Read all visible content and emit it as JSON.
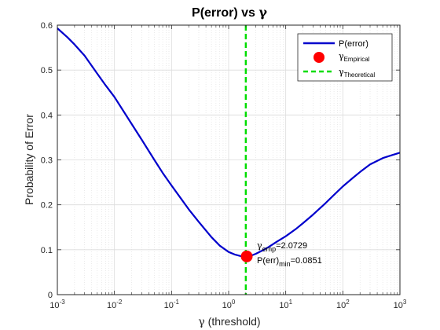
{
  "chart_data": {
    "type": "line",
    "title": "P(error) vs γ",
    "title_parts": [
      "P(error) vs ",
      "γ"
    ],
    "xlabel": "γ (threshold)",
    "xlabel_parts": [
      "γ",
      " (threshold)"
    ],
    "ylabel": "Probability of Error",
    "xscale": "log",
    "xlim": [
      0.001,
      1000
    ],
    "ylim": [
      0,
      0.6
    ],
    "grid": true,
    "minor_grid": true,
    "x_ticks": [
      {
        "base": "10",
        "exp": "-3"
      },
      {
        "base": "10",
        "exp": "-2"
      },
      {
        "base": "10",
        "exp": "-1"
      },
      {
        "base": "10",
        "exp": "0"
      },
      {
        "base": "10",
        "exp": "1"
      },
      {
        "base": "10",
        "exp": "2"
      },
      {
        "base": "10",
        "exp": "3"
      }
    ],
    "y_ticks": [
      "0",
      "0.1",
      "0.2",
      "0.3",
      "0.4",
      "0.5",
      "0.6"
    ],
    "series": [
      {
        "name": "P(error)",
        "color": "#0000cc",
        "x": [
          0.001,
          0.0015,
          0.002,
          0.003,
          0.005,
          0.007,
          0.01,
          0.015,
          0.02,
          0.03,
          0.05,
          0.07,
          0.1,
          0.15,
          0.2,
          0.3,
          0.5,
          0.7,
          1.0,
          1.3,
          1.6,
          2.0729,
          2.5,
          3,
          4,
          5,
          7,
          10,
          15,
          20,
          30,
          50,
          70,
          100,
          150,
          200,
          300,
          500,
          700,
          1000
        ],
        "y": [
          0.593,
          0.573,
          0.557,
          0.532,
          0.492,
          0.466,
          0.44,
          0.405,
          0.38,
          0.345,
          0.3,
          0.271,
          0.243,
          0.212,
          0.19,
          0.162,
          0.128,
          0.109,
          0.095,
          0.089,
          0.086,
          0.0851,
          0.087,
          0.091,
          0.099,
          0.106,
          0.118,
          0.13,
          0.146,
          0.159,
          0.178,
          0.204,
          0.222,
          0.241,
          0.26,
          0.273,
          0.29,
          0.304,
          0.31,
          0.316
        ]
      }
    ],
    "markers": [
      {
        "name": "γ_Empirical",
        "x": 2.0729,
        "y": 0.0851,
        "color": "#ff0000"
      }
    ],
    "vlines": [
      {
        "name": "γ_Theoretical",
        "x": 2.0,
        "color": "#00dd00",
        "style": "dashed"
      }
    ],
    "legend": {
      "placement": "top-right",
      "entries": [
        {
          "kind": "line",
          "color": "#0000cc",
          "text": "P(error)",
          "sub": ""
        },
        {
          "kind": "marker",
          "color": "#ff0000",
          "text": "γ",
          "sub": "Empirical"
        },
        {
          "kind": "dashed",
          "color": "#00dd00",
          "text": "γ",
          "sub": "Theoretical"
        }
      ]
    },
    "annotations": {
      "line1": {
        "main": "γ",
        "sub": "emp",
        "rest": "=2.0729"
      },
      "line2": {
        "main": "P(err)",
        "sub": "min",
        "rest": "=0.0851"
      }
    },
    "colors": {
      "curve": "#0000cc",
      "marker": "#ff0000",
      "threshold": "#00dd00",
      "grid": "#dcdcdc",
      "axis": "#262626"
    }
  }
}
